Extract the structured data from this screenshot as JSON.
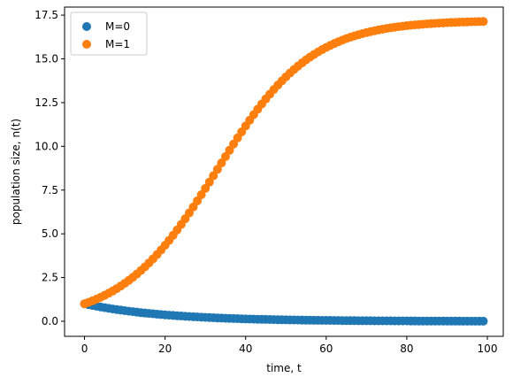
{
  "chart_data": {
    "type": "scatter",
    "title": "",
    "xlabel": "time, t",
    "ylabel": "population size, n(t)",
    "xlim": [
      -4.95,
      103.95
    ],
    "ylim": [
      -0.86,
      17.96
    ],
    "xticks": [
      0,
      20,
      40,
      60,
      80,
      100
    ],
    "yticks": [
      0.0,
      2.5,
      5.0,
      7.5,
      10.0,
      12.5,
      15.0,
      17.5
    ],
    "ytick_labels": [
      "0.0",
      "2.5",
      "5.0",
      "7.5",
      "10.0",
      "12.5",
      "15.0",
      "17.5"
    ],
    "grid": false,
    "legend_position": "top-left",
    "series": [
      {
        "name": "M=0",
        "color": "#1f77b4",
        "x_start": 0,
        "x_end": 99,
        "x_step": 1,
        "model": "exponential-decay",
        "y0": 1.0,
        "decay_rate": 0.05
      },
      {
        "name": "M=1",
        "color": "#ff7f0e",
        "x_start": 0,
        "x_end": 99,
        "x_step": 1,
        "model": "logistic",
        "y0": 1.0,
        "growth_rate": 0.085,
        "carrying_capacity": 17.2
      }
    ]
  }
}
